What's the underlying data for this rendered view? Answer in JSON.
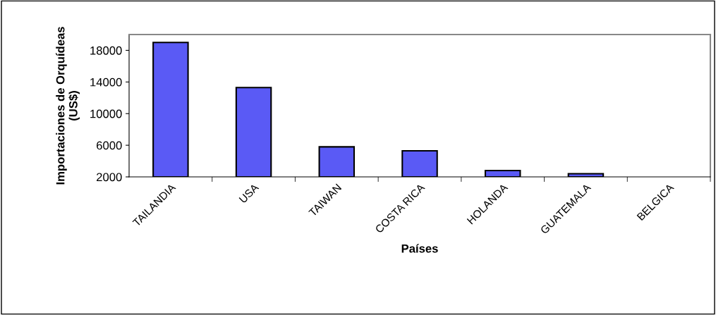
{
  "chart_data": {
    "type": "bar",
    "xlabel": "Países",
    "ylabel": "Importaciones de Orquídeas\n(US$)",
    "categories": [
      "TAILANDIA",
      "USA",
      "TAIWAN",
      "COSTA RICA",
      "HOLANDA",
      "GUATEMALA",
      "BELGICA"
    ],
    "values": [
      19000,
      13300,
      5800,
      5300,
      2800,
      2400,
      null
    ],
    "color": "#5a5af5",
    "ylim": [
      2000,
      20000
    ],
    "yticks": [
      2000,
      6000,
      10000,
      14000,
      18000
    ],
    "grid": false,
    "legend": false
  }
}
